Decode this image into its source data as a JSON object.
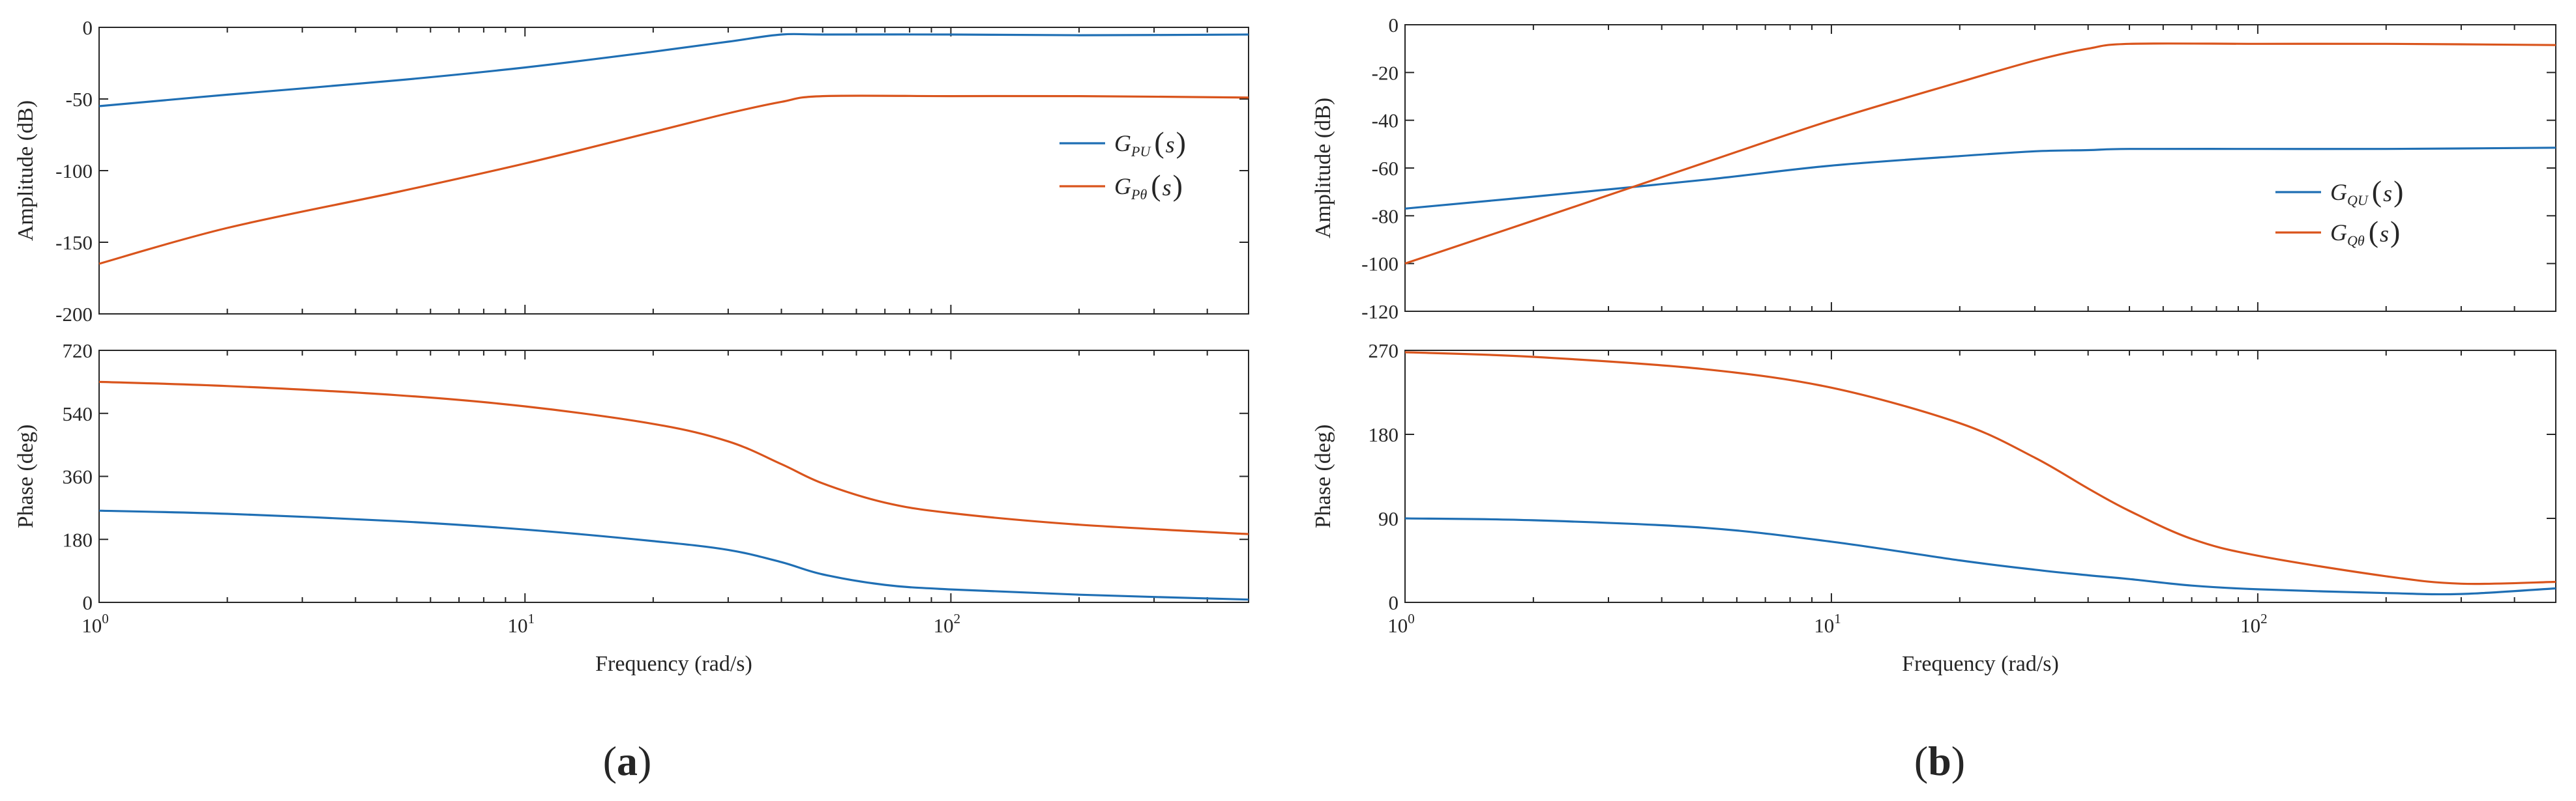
{
  "figure": {
    "panels": [
      {
        "label_open": "(",
        "label_letter": "a",
        "label_close": ")"
      },
      {
        "label_open": "(",
        "label_letter": "b",
        "label_close": ")"
      }
    ]
  },
  "chart_data": [
    {
      "type": "line",
      "panel": "a",
      "subplot": "amplitude",
      "xscale": "log",
      "xlim": [
        1,
        500
      ],
      "ylim": [
        -200,
        0
      ],
      "yticks": [
        "0",
        "-50",
        "-100",
        "-150",
        "-200"
      ],
      "xlabel": "",
      "ylabel": "Amplitude (dB)",
      "legend_position": "right",
      "series": [
        {
          "name": "G_PU(s)",
          "legend": {
            "sym": "G",
            "sub": "PU",
            "open": "(",
            "arg": "s",
            "close": ")"
          },
          "color": "#1f6fb4",
          "x": [
            1,
            2,
            5,
            10,
            20,
            30,
            40,
            50,
            100,
            200,
            500
          ],
          "y": [
            -55,
            -47,
            -37,
            -28,
            -17,
            -10,
            -5,
            -5,
            -5,
            -5.5,
            -5
          ]
        },
        {
          "name": "G_Pθ(s)",
          "legend": {
            "sym": "G",
            "sub": "Pθ",
            "open": "(",
            "arg": "s",
            "close": ")"
          },
          "color": "#d9541c",
          "x": [
            1,
            2,
            5,
            10,
            20,
            30,
            40,
            50,
            100,
            200,
            500
          ],
          "y": [
            -165,
            -140,
            -115,
            -95,
            -73,
            -60,
            -52,
            -48,
            -48,
            -48,
            -49
          ]
        }
      ]
    },
    {
      "type": "line",
      "panel": "a",
      "subplot": "phase",
      "xscale": "log",
      "xlim": [
        1,
        500
      ],
      "ylim": [
        0,
        720
      ],
      "yticks": [
        "720",
        "540",
        "360",
        "180",
        "0"
      ],
      "xticks": [
        {
          "base": "10",
          "exp": "0"
        },
        {
          "base": "10",
          "exp": "1"
        },
        {
          "base": "10",
          "exp": "2"
        }
      ],
      "xlabel": "Frequency (rad/s)",
      "ylabel": "Phase (deg)",
      "series": [
        {
          "name": "G_PU(s)",
          "color": "#1f6fb4",
          "x": [
            1,
            2,
            5,
            10,
            20,
            30,
            40,
            50,
            70,
            100,
            200,
            500
          ],
          "y": [
            262,
            253,
            232,
            208,
            175,
            150,
            115,
            80,
            50,
            37,
            22,
            8
          ]
        },
        {
          "name": "G_Pθ(s)",
          "color": "#d9541c",
          "x": [
            1,
            2,
            5,
            10,
            20,
            30,
            40,
            50,
            70,
            100,
            200,
            500
          ],
          "y": [
            630,
            618,
            592,
            560,
            510,
            460,
            395,
            340,
            285,
            255,
            222,
            195
          ]
        }
      ]
    },
    {
      "type": "line",
      "panel": "b",
      "subplot": "amplitude",
      "xscale": "log",
      "xlim": [
        1,
        500
      ],
      "ylim": [
        -120,
        0
      ],
      "yticks": [
        "0",
        "-20",
        "-40",
        "-60",
        "-80",
        "-100",
        "-120"
      ],
      "xlabel": "",
      "ylabel": "Amplitude (dB)",
      "legend_position": "right",
      "series": [
        {
          "name": "G_QU(s)",
          "legend": {
            "sym": "G",
            "sub": "QU",
            "open": "(",
            "arg": "s",
            "close": ")"
          },
          "color": "#1f6fb4",
          "x": [
            1,
            2,
            5,
            10,
            20,
            30,
            40,
            50,
            100,
            200,
            500
          ],
          "y": [
            -77,
            -72,
            -65,
            -59,
            -55,
            -53,
            -52.5,
            -52,
            -52,
            -52,
            -51.5
          ]
        },
        {
          "name": "G_Qθ(s)",
          "legend": {
            "sym": "G",
            "sub": "Qθ",
            "open": "(",
            "arg": "s",
            "close": ")"
          },
          "color": "#d9541c",
          "x": [
            1,
            2,
            5,
            10,
            20,
            30,
            40,
            50,
            100,
            200,
            500
          ],
          "y": [
            -100,
            -82,
            -58,
            -40,
            -24,
            -15,
            -10,
            -8,
            -8,
            -8,
            -8.5
          ]
        }
      ]
    },
    {
      "type": "line",
      "panel": "b",
      "subplot": "phase",
      "xscale": "log",
      "xlim": [
        1,
        500
      ],
      "ylim": [
        0,
        270
      ],
      "yticks": [
        "270",
        "180",
        "90",
        "0"
      ],
      "xticks": [
        {
          "base": "10",
          "exp": "0"
        },
        {
          "base": "10",
          "exp": "1"
        },
        {
          "base": "10",
          "exp": "2"
        }
      ],
      "xlabel": "Frequency (rad/s)",
      "ylabel": "Phase (deg)",
      "series": [
        {
          "name": "G_QU(s)",
          "color": "#1f6fb4",
          "x": [
            1,
            2,
            5,
            10,
            20,
            30,
            40,
            50,
            70,
            100,
            200,
            300,
            500
          ],
          "y": [
            90,
            88,
            80,
            65,
            45,
            35,
            29,
            25,
            18,
            14,
            10,
            9,
            15
          ]
        },
        {
          "name": "G_Qθ(s)",
          "color": "#d9541c",
          "x": [
            1,
            2,
            5,
            10,
            20,
            30,
            40,
            50,
            70,
            100,
            200,
            300,
            500
          ],
          "y": [
            268,
            263,
            250,
            230,
            192,
            155,
            122,
            98,
            68,
            50,
            28,
            20,
            22
          ]
        }
      ]
    }
  ]
}
